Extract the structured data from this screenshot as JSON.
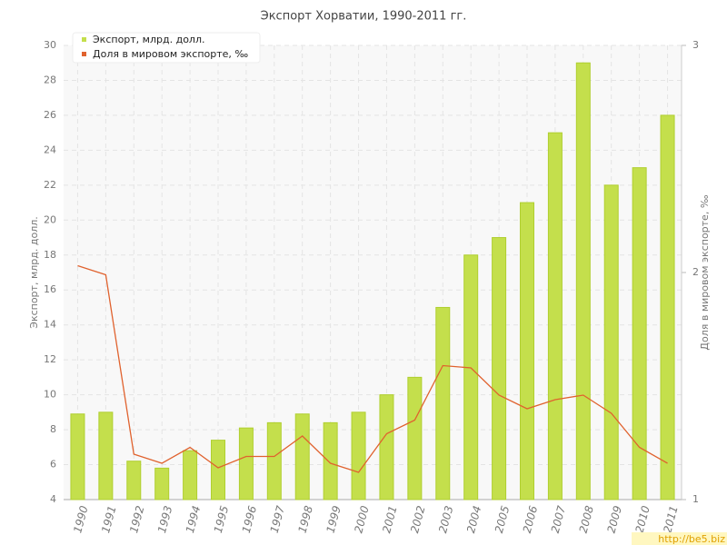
{
  "chart_data": {
    "type": "bar",
    "title": "Экспорт Хорватии, 1990-2011 гг.",
    "ylabel": "Экспорт, млрд. долл.",
    "y2label": "Доля в мировом экспорте, ‰",
    "categories": [
      "1990",
      "1991",
      "1992",
      "1993",
      "1994",
      "1995",
      "1996",
      "1997",
      "1998",
      "1999",
      "2000",
      "2001",
      "2002",
      "2003",
      "2004",
      "2005",
      "2006",
      "2007",
      "2008",
      "2009",
      "2010",
      "2011"
    ],
    "series": [
      {
        "name": "Экспорт, млрд. долл.",
        "color": "#c4df4c",
        "values": [
          8.9,
          9.0,
          6.2,
          5.8,
          6.8,
          7.4,
          8.1,
          8.4,
          8.9,
          8.4,
          9.0,
          10.0,
          11.0,
          15.0,
          18.0,
          19.0,
          21.0,
          25.0,
          29.0,
          22.0,
          23.0,
          26.0
        ]
      },
      {
        "name": "Доля в мировом экспорте, ‰",
        "color": "#e0622e",
        "type": "line",
        "axis": "y2",
        "values": [
          2.03,
          1.99,
          1.2,
          1.16,
          1.23,
          1.14,
          1.19,
          1.19,
          1.28,
          1.16,
          1.12,
          1.29,
          1.35,
          1.59,
          1.58,
          1.46,
          1.4,
          1.44,
          1.46,
          1.38,
          1.23,
          1.16
        ]
      }
    ],
    "ylim": [
      4,
      30
    ],
    "yticks": [
      4,
      6,
      8,
      10,
      12,
      14,
      16,
      18,
      20,
      22,
      24,
      26,
      28,
      30
    ],
    "y2lim": [
      1,
      3
    ],
    "y2ticks": [
      1,
      2,
      3
    ],
    "grid": true
  },
  "watermark": "http://be5.biz"
}
